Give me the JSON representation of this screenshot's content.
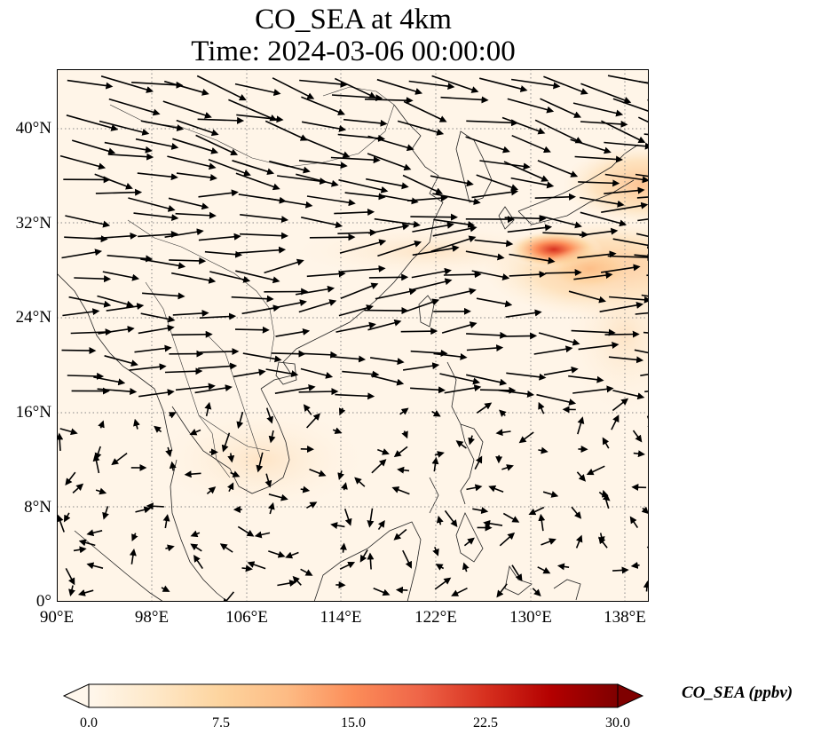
{
  "title": {
    "line1": "CO_SEA at 4km",
    "line2": "Time: 2024-03-06 00:00:00"
  },
  "map": {
    "projection": "PlateCarree",
    "extent": {
      "lon": [
        90,
        140
      ],
      "lat": [
        0,
        45
      ]
    },
    "lat_ticks": [
      "0°",
      "8°N",
      "16°N",
      "24°N",
      "32°N",
      "40°N"
    ],
    "lon_ticks": [
      "90°E",
      "98°E",
      "106°E",
      "114°E",
      "122°E",
      "130°E",
      "138°E"
    ],
    "gridlines": "dotted",
    "features": [
      "coastlines",
      "country borders"
    ],
    "wind_vectors": "quiver, predominantly westerly north of ~18°N, weak/variable to the south"
  },
  "colorbar": {
    "label": "CO_SEA (ppbv)",
    "ticks": [
      "0.0",
      "7.5",
      "15.0",
      "22.5",
      "30.0"
    ],
    "range": [
      0,
      30
    ],
    "extend": "both",
    "colormap": "OrRd",
    "colors": [
      "#fff7ec",
      "#fee8c8",
      "#fdd49e",
      "#fdbb84",
      "#fc8d59",
      "#ef6548",
      "#d7301f",
      "#b30000",
      "#7f0000"
    ]
  },
  "field_hotspots": [
    {
      "lon": 130,
      "lat": 29.8,
      "value": 20
    },
    {
      "lon": 137,
      "lat": 33,
      "value": 8
    },
    {
      "lon": 134,
      "lat": 27,
      "value": 6
    }
  ]
}
